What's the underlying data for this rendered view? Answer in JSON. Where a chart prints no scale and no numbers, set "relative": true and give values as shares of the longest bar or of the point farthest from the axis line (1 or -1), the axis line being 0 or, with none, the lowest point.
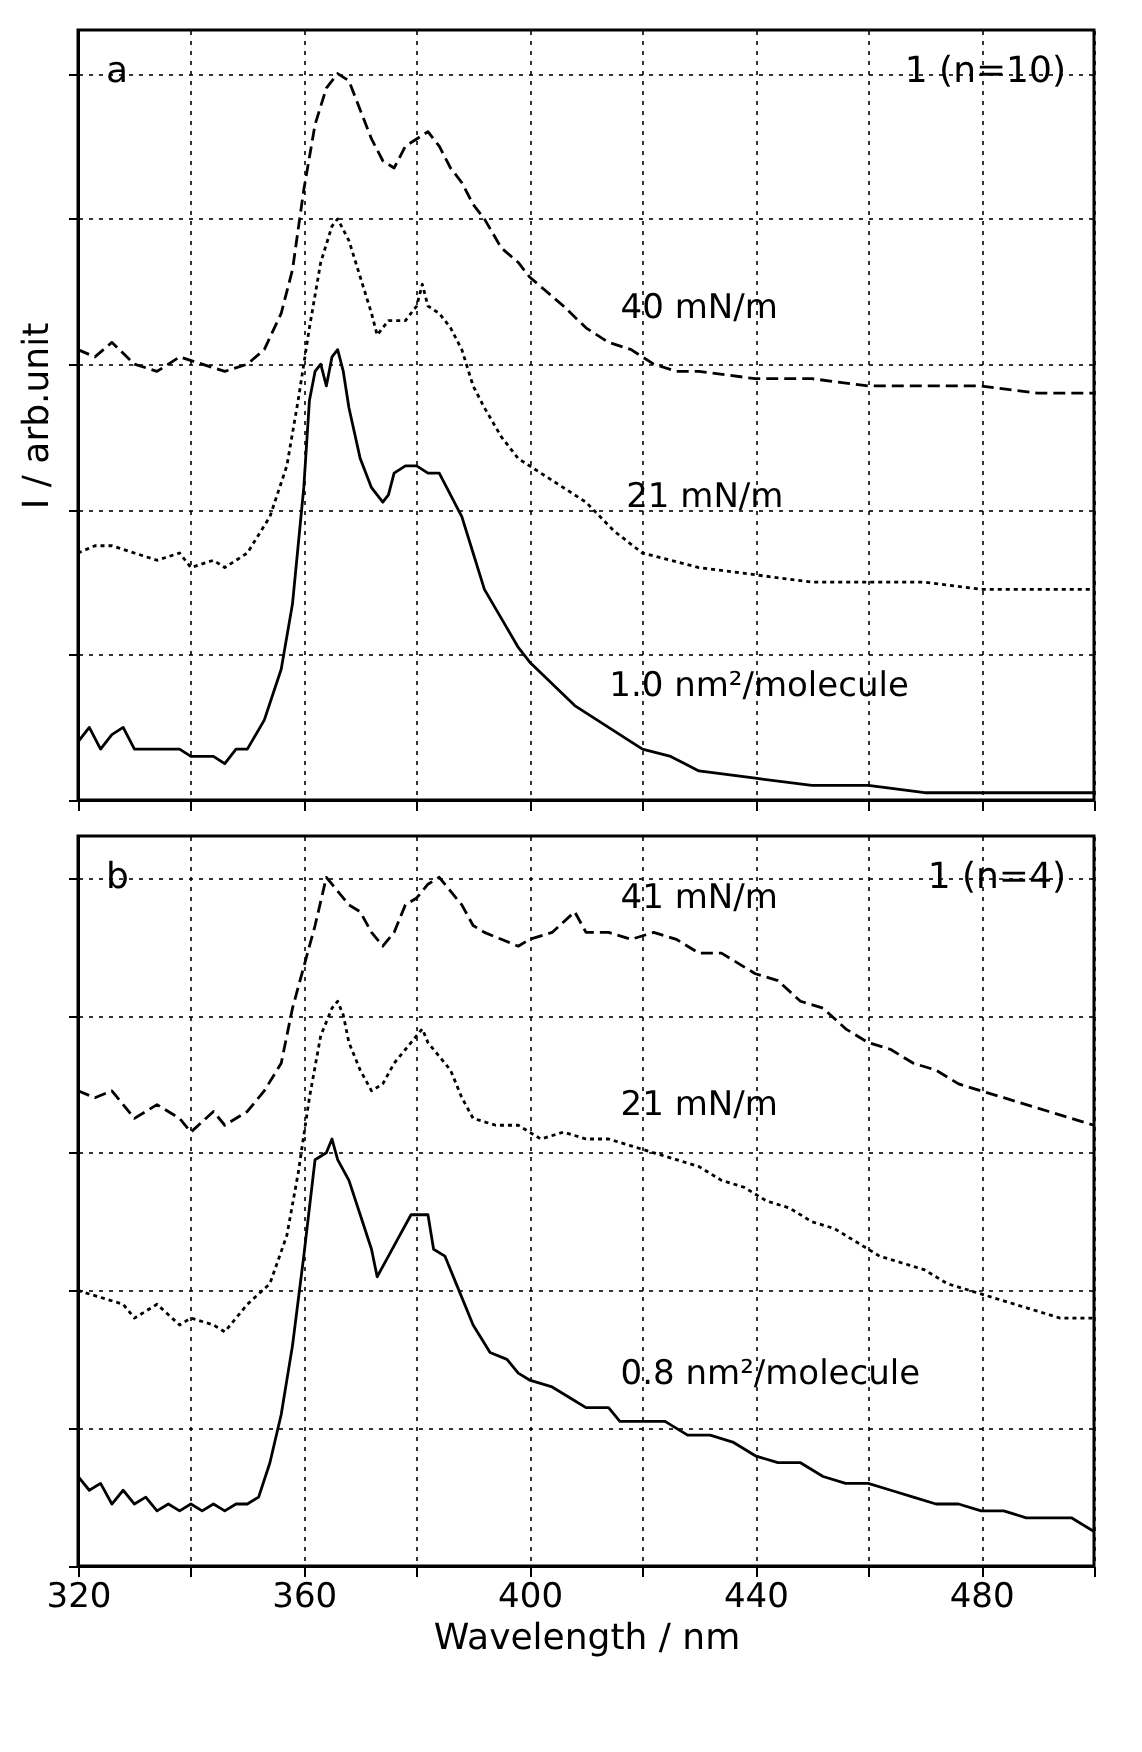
{
  "chart_data": [
    {
      "type": "line",
      "relative": true,
      "xlim": [
        320,
        500
      ],
      "xticks": [
        320,
        {
          "value": 340,
          "label": null
        },
        360,
        {
          "value": 380,
          "label": null
        },
        400,
        {
          "value": 420,
          "label": null
        },
        440,
        {
          "value": 460,
          "label": null
        },
        480,
        {
          "value": 500,
          "label": null
        }
      ],
      "ylabel": "I / arb.unit",
      "grid": true,
      "tick_labels": false,
      "annotations": [
        "a",
        "1 (n=10)"
      ],
      "series": [
        {
          "name": "40 mN/m",
          "color": "#000000",
          "line_style": "dashed",
          "x": [
            320,
            323,
            326,
            330,
            334,
            338,
            342,
            346,
            350,
            353,
            356,
            358,
            360,
            362,
            364,
            366,
            368,
            370,
            372,
            374,
            376,
            378,
            380,
            382,
            384,
            386,
            388,
            390,
            392,
            395,
            398,
            400,
            403,
            406,
            410,
            414,
            418,
            422,
            426,
            430,
            440,
            450,
            460,
            470,
            480,
            490,
            500
          ],
          "values": [
            0.62,
            0.61,
            0.63,
            0.6,
            0.59,
            0.61,
            0.6,
            0.59,
            0.6,
            0.62,
            0.67,
            0.73,
            0.84,
            0.93,
            0.98,
            1.0,
            0.99,
            0.95,
            0.91,
            0.88,
            0.87,
            0.9,
            0.91,
            0.92,
            0.9,
            0.87,
            0.85,
            0.82,
            0.8,
            0.76,
            0.74,
            0.72,
            0.7,
            0.68,
            0.65,
            0.63,
            0.62,
            0.6,
            0.59,
            0.59,
            0.58,
            0.58,
            0.57,
            0.57,
            0.57,
            0.56,
            0.56
          ]
        },
        {
          "name": "21 mN/m",
          "color": "#000000",
          "line_style": "dotted",
          "x": [
            320,
            323,
            326,
            330,
            334,
            338,
            340,
            344,
            346,
            350,
            354,
            357,
            359,
            361,
            363,
            365,
            366,
            368,
            370,
            372,
            373,
            375,
            378,
            380,
            381,
            382,
            384,
            386,
            388,
            390,
            392,
            395,
            398,
            402,
            406,
            410,
            415,
            420,
            425,
            430,
            440,
            450,
            460,
            470,
            480,
            490,
            500
          ],
          "values": [
            0.34,
            0.35,
            0.35,
            0.34,
            0.33,
            0.34,
            0.32,
            0.33,
            0.32,
            0.34,
            0.39,
            0.46,
            0.55,
            0.65,
            0.74,
            0.79,
            0.8,
            0.77,
            0.72,
            0.67,
            0.64,
            0.66,
            0.66,
            0.68,
            0.71,
            0.68,
            0.67,
            0.65,
            0.62,
            0.57,
            0.54,
            0.5,
            0.47,
            0.45,
            0.43,
            0.41,
            0.37,
            0.34,
            0.33,
            0.32,
            0.31,
            0.3,
            0.3,
            0.3,
            0.29,
            0.29,
            0.29
          ]
        },
        {
          "name": "1.0 nm²/molecule",
          "color": "#000000",
          "line_style": "solid",
          "x": [
            320,
            322,
            324,
            326,
            328,
            330,
            334,
            338,
            340,
            344,
            346,
            348,
            350,
            353,
            356,
            358,
            360,
            361,
            362,
            363,
            364,
            365,
            366,
            367,
            368,
            370,
            372,
            374,
            375,
            376,
            378,
            380,
            382,
            384,
            386,
            388,
            390,
            392,
            395,
            398,
            400,
            404,
            408,
            412,
            416,
            420,
            425,
            430,
            440,
            450,
            460,
            470,
            480,
            490,
            500
          ],
          "values": [
            0.08,
            0.1,
            0.07,
            0.09,
            0.1,
            0.07,
            0.07,
            0.07,
            0.06,
            0.06,
            0.05,
            0.07,
            0.07,
            0.11,
            0.18,
            0.27,
            0.43,
            0.55,
            0.59,
            0.6,
            0.57,
            0.61,
            0.62,
            0.59,
            0.54,
            0.47,
            0.43,
            0.41,
            0.42,
            0.45,
            0.46,
            0.46,
            0.45,
            0.45,
            0.42,
            0.39,
            0.34,
            0.29,
            0.25,
            0.21,
            0.19,
            0.16,
            0.13,
            0.11,
            0.09,
            0.07,
            0.06,
            0.04,
            0.03,
            0.02,
            0.02,
            0.01,
            0.01,
            0.01,
            0.01
          ]
        }
      ]
    },
    {
      "type": "line",
      "relative": true,
      "xlim": [
        320,
        500
      ],
      "xticks": [
        320,
        {
          "value": 340,
          "label": null
        },
        360,
        {
          "value": 380,
          "label": null
        },
        400,
        {
          "value": 420,
          "label": null
        },
        440,
        {
          "value": 460,
          "label": null
        },
        480,
        {
          "value": 500,
          "label": null
        }
      ],
      "xlabel": "Wavelength / nm",
      "grid": true,
      "tick_labels": "x",
      "annotations": [
        "b",
        "1 (n=4)"
      ],
      "series": [
        {
          "name": "41 mN/m",
          "color": "#000000",
          "line_style": "dashed",
          "x": [
            320,
            323,
            326,
            330,
            334,
            338,
            340,
            344,
            346,
            350,
            353,
            356,
            358,
            360,
            362,
            364,
            366,
            368,
            370,
            372,
            374,
            376,
            378,
            380,
            382,
            384,
            386,
            388,
            390,
            392,
            395,
            398,
            400,
            404,
            408,
            410,
            414,
            418,
            422,
            426,
            430,
            434,
            438,
            440,
            444,
            448,
            452,
            456,
            460,
            464,
            468,
            472,
            476,
            480,
            484,
            488,
            492,
            496,
            500
          ],
          "values": [
            0.69,
            0.68,
            0.69,
            0.65,
            0.67,
            0.65,
            0.63,
            0.66,
            0.64,
            0.66,
            0.69,
            0.73,
            0.81,
            0.87,
            0.93,
            1.0,
            0.98,
            0.96,
            0.95,
            0.92,
            0.9,
            0.92,
            0.96,
            0.97,
            0.99,
            1.0,
            0.98,
            0.96,
            0.93,
            0.92,
            0.91,
            0.9,
            0.91,
            0.92,
            0.95,
            0.92,
            0.92,
            0.91,
            0.92,
            0.91,
            0.89,
            0.89,
            0.87,
            0.86,
            0.85,
            0.82,
            0.81,
            0.78,
            0.76,
            0.75,
            0.73,
            0.72,
            0.7,
            0.69,
            0.68,
            0.67,
            0.66,
            0.65,
            0.64
          ]
        },
        {
          "name": "21 mN/m",
          "color": "#000000",
          "line_style": "dotted",
          "x": [
            320,
            324,
            328,
            330,
            334,
            338,
            340,
            344,
            346,
            350,
            354,
            357,
            359,
            361,
            363,
            365,
            366,
            367,
            368,
            370,
            372,
            374,
            376,
            378,
            380,
            381,
            382,
            384,
            386,
            388,
            390,
            394,
            398,
            402,
            406,
            410,
            414,
            418,
            422,
            426,
            430,
            434,
            438,
            442,
            446,
            450,
            454,
            458,
            462,
            466,
            470,
            474,
            478,
            482,
            486,
            490,
            494,
            500
          ],
          "values": [
            0.4,
            0.39,
            0.38,
            0.36,
            0.38,
            0.35,
            0.36,
            0.35,
            0.34,
            0.38,
            0.41,
            0.48,
            0.57,
            0.68,
            0.77,
            0.81,
            0.82,
            0.8,
            0.76,
            0.72,
            0.69,
            0.7,
            0.73,
            0.75,
            0.77,
            0.78,
            0.76,
            0.74,
            0.72,
            0.68,
            0.65,
            0.64,
            0.64,
            0.62,
            0.63,
            0.62,
            0.62,
            0.61,
            0.6,
            0.59,
            0.58,
            0.56,
            0.55,
            0.53,
            0.52,
            0.5,
            0.49,
            0.47,
            0.45,
            0.44,
            0.43,
            0.41,
            0.4,
            0.39,
            0.38,
            0.37,
            0.36,
            0.36
          ]
        },
        {
          "name": "0.8 nm²/molecule",
          "color": "#000000",
          "line_style": "solid",
          "x": [
            320,
            322,
            324,
            326,
            328,
            330,
            332,
            334,
            336,
            338,
            340,
            342,
            344,
            346,
            348,
            350,
            352,
            354,
            356,
            358,
            360,
            361,
            362,
            364,
            365,
            366,
            368,
            370,
            372,
            373,
            375,
            377,
            379,
            381,
            382,
            383,
            385,
            387,
            390,
            393,
            396,
            398,
            400,
            404,
            408,
            410,
            414,
            416,
            420,
            424,
            428,
            432,
            436,
            440,
            444,
            448,
            452,
            456,
            460,
            464,
            468,
            472,
            476,
            480,
            484,
            488,
            492,
            496,
            500
          ],
          "values": [
            0.13,
            0.11,
            0.12,
            0.09,
            0.11,
            0.09,
            0.1,
            0.08,
            0.09,
            0.08,
            0.09,
            0.08,
            0.09,
            0.08,
            0.09,
            0.09,
            0.1,
            0.15,
            0.22,
            0.32,
            0.45,
            0.52,
            0.59,
            0.6,
            0.62,
            0.59,
            0.56,
            0.51,
            0.46,
            0.42,
            0.45,
            0.48,
            0.51,
            0.51,
            0.51,
            0.46,
            0.45,
            0.41,
            0.35,
            0.31,
            0.3,
            0.28,
            0.27,
            0.26,
            0.24,
            0.23,
            0.23,
            0.21,
            0.21,
            0.21,
            0.19,
            0.19,
            0.18,
            0.16,
            0.15,
            0.15,
            0.13,
            0.12,
            0.12,
            0.11,
            0.1,
            0.09,
            0.09,
            0.08,
            0.08,
            0.07,
            0.07,
            0.07,
            0.05
          ]
        }
      ]
    }
  ]
}
